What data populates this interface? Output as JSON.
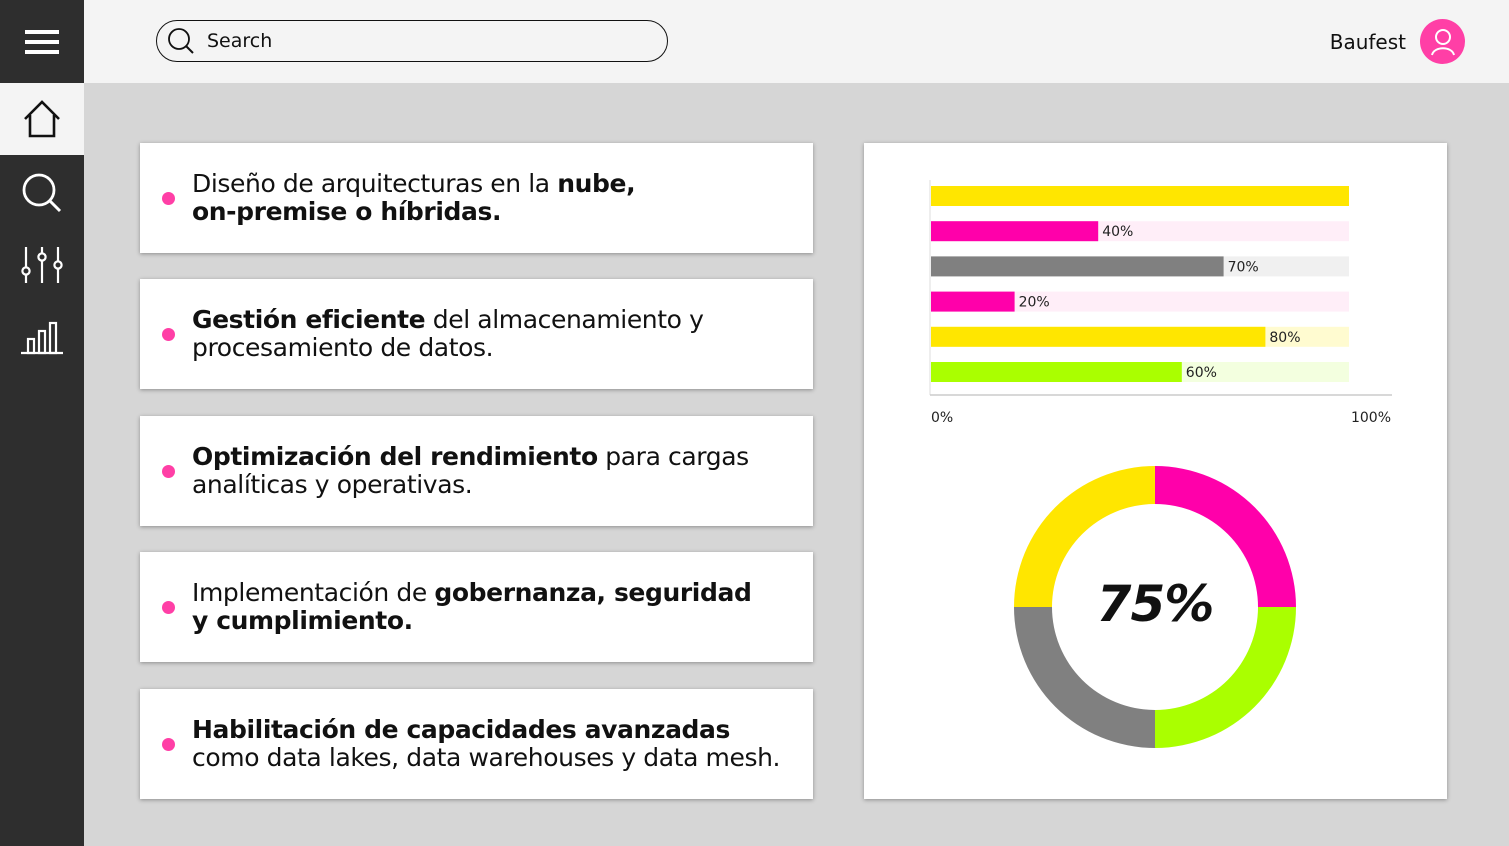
{
  "header": {
    "search": {
      "placeholder": "Search",
      "value": ""
    },
    "user": {
      "name": "Baufest"
    }
  },
  "sidebar": {
    "items": [
      {
        "id": "menu",
        "icon": "menu-icon"
      },
      {
        "id": "home",
        "icon": "home-icon",
        "active": true
      },
      {
        "id": "search",
        "icon": "search-icon"
      },
      {
        "id": "filters",
        "icon": "sliders-icon"
      },
      {
        "id": "charts",
        "icon": "bar-chart-icon"
      }
    ]
  },
  "cards": [
    {
      "parts": [
        {
          "t": "Diseño de arquitecturas en la ",
          "b": false
        },
        {
          "t": "nube,",
          "b": true
        },
        {
          "t": "\n",
          "b": false
        },
        {
          "t": "on-premise o híbridas.",
          "b": true
        }
      ]
    },
    {
      "parts": [
        {
          "t": "Gestión eficiente",
          "b": true
        },
        {
          "t": " del almacenamiento y procesamiento de datos.",
          "b": false
        }
      ]
    },
    {
      "parts": [
        {
          "t": "Optimización del rendimiento",
          "b": true
        },
        {
          "t": " para cargas analíticas y operativas.",
          "b": false
        }
      ]
    },
    {
      "parts": [
        {
          "t": "Implementación de ",
          "b": false
        },
        {
          "t": "gobernanza, seguridad",
          "b": true
        },
        {
          "t": "\n",
          "b": false
        },
        {
          "t": "y cumplimiento.",
          "b": true
        }
      ]
    },
    {
      "parts": [
        {
          "t": "Habilitación de capacidades avanzadas",
          "b": true
        },
        {
          "t": " como data lakes, data warehouses y data mesh.",
          "b": false
        }
      ]
    }
  ],
  "chart_data": [
    {
      "type": "bar",
      "orientation": "horizontal",
      "values": [
        100,
        40,
        70,
        20,
        80,
        60
      ],
      "data_labels": [
        "",
        "40%",
        "70%",
        "20%",
        "80%",
        "60%"
      ],
      "colors": [
        "#ffe600",
        "#ff00aa",
        "#808080",
        "#ff00aa",
        "#ffe600",
        "#aaff00"
      ],
      "track_colors": [
        "#ffffff",
        "#ffeef8",
        "#f0f0f0",
        "#ffeef8",
        "#fffbd0",
        "#f3ffdf"
      ],
      "xlim": [
        0,
        100
      ],
      "x_tick_labels": [
        "0%",
        "100%"
      ]
    },
    {
      "type": "pie",
      "donut": true,
      "center_label": "75%",
      "slices": [
        {
          "value": 25,
          "color": "#ff00aa"
        },
        {
          "value": 25,
          "color": "#aaff00"
        },
        {
          "value": 25,
          "color": "#808080"
        },
        {
          "value": 25,
          "color": "#ffe600"
        }
      ]
    }
  ]
}
